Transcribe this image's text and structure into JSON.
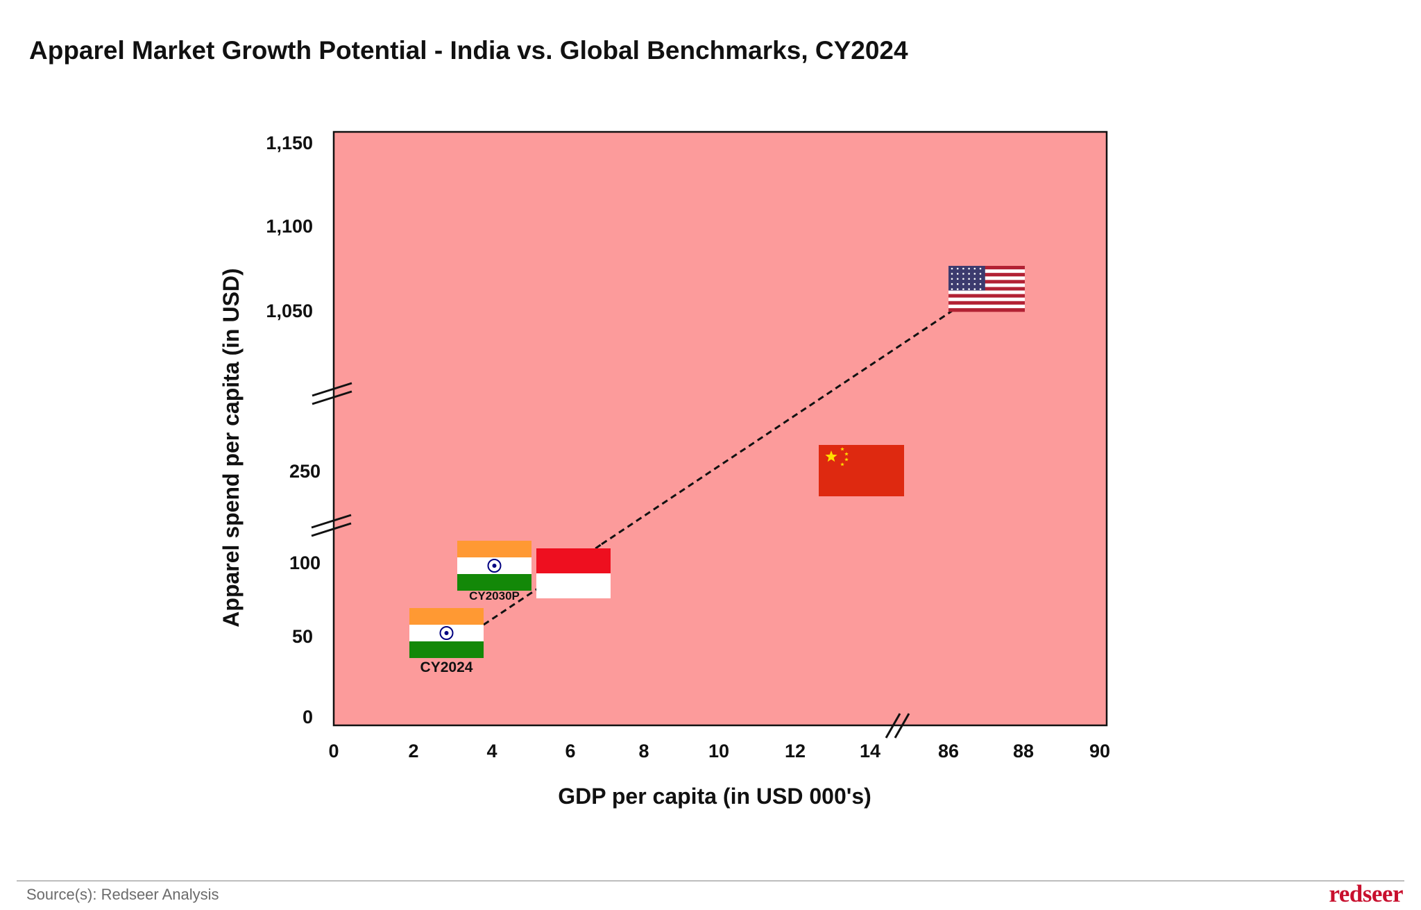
{
  "title": "Apparel Market Growth Potential - India vs. Global Benchmarks, CY2024",
  "source": "Source(s): Redseer Analysis",
  "brand": "redseer",
  "chart_data": {
    "type": "scatter",
    "title": "Apparel Market Growth Potential - India vs. Global Benchmarks, CY2024",
    "xlabel": "GDP per capita (in USD 000's)",
    "ylabel": "Apparel spend per capita (in USD)",
    "x_ticks": [
      "0",
      "2",
      "4",
      "6",
      "8",
      "10",
      "12",
      "14",
      "86",
      "88",
      "90"
    ],
    "y_ticks": [
      "0",
      "50",
      "100",
      "250",
      "1,050",
      "1,100",
      "1,150"
    ],
    "x_axis_break": "between 14 and 86",
    "y_axis_breaks": [
      "between 100 and 250",
      "between 250 and 1,050"
    ],
    "background_color": "#fc9b9b",
    "series": [
      {
        "name": "India",
        "label": "CY2024",
        "x": 2.5,
        "y": 48
      },
      {
        "name": "India",
        "label": "CY2030P",
        "x": 4.0,
        "y": 100
      },
      {
        "name": "Indonesia",
        "label": "",
        "x": 6.0,
        "y": 91
      },
      {
        "name": "China",
        "label": "",
        "x": 13.3,
        "y": 250
      },
      {
        "name": "USA",
        "label": "",
        "x": 86.5,
        "y": 1060
      }
    ],
    "trend_line": [
      "India CY2024",
      "India CY2030P",
      "Indonesia",
      "USA"
    ],
    "trend_line_style": "dashed"
  }
}
